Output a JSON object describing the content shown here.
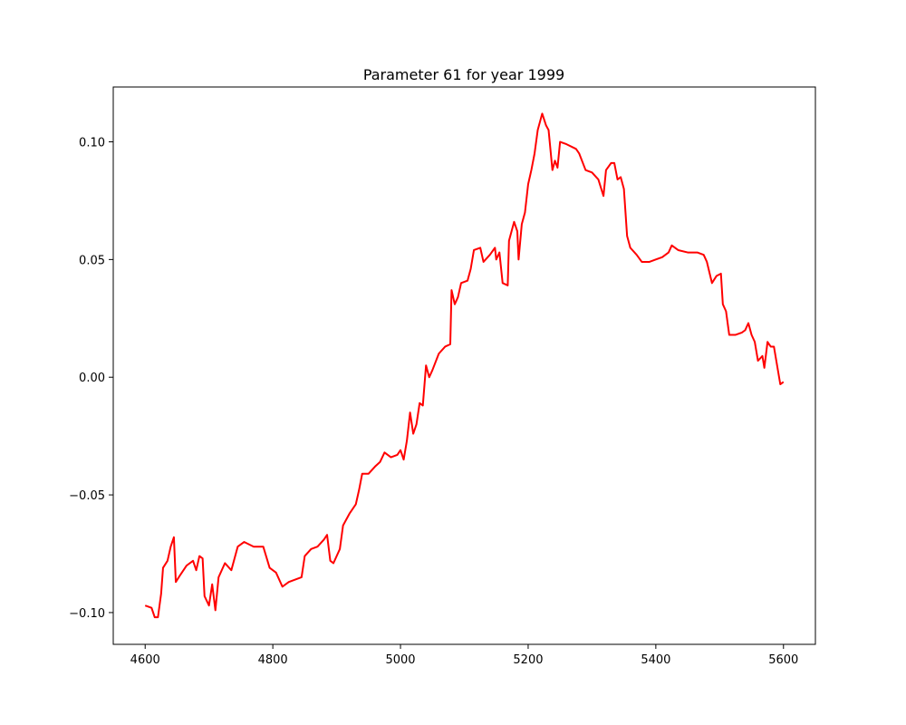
{
  "chart_data": {
    "type": "line",
    "title": "Parameter 61 for year 1999",
    "x": [
      4600,
      4610,
      4615,
      4620,
      4625,
      4628,
      4635,
      4640,
      4645,
      4648,
      4655,
      4665,
      4675,
      4680,
      4685,
      4690,
      4693,
      4700,
      4705,
      4710,
      4715,
      4725,
      4735,
      4745,
      4755,
      4770,
      4785,
      4795,
      4805,
      4815,
      4825,
      4835,
      4845,
      4850,
      4860,
      4870,
      4880,
      4885,
      4890,
      4895,
      4905,
      4910,
      4920,
      4930,
      4935,
      4940,
      4950,
      4960,
      4968,
      4975,
      4985,
      4995,
      5000,
      5005,
      5010,
      5015,
      5020,
      5025,
      5030,
      5035,
      5040,
      5045,
      5050,
      5060,
      5070,
      5078,
      5080,
      5085,
      5090,
      5095,
      5105,
      5110,
      5115,
      5125,
      5130,
      5140,
      5148,
      5150,
      5155,
      5160,
      5168,
      5170,
      5178,
      5183,
      5185,
      5190,
      5195,
      5200,
      5205,
      5210,
      5215,
      5222,
      5228,
      5232,
      5238,
      5242,
      5246,
      5250,
      5260,
      5275,
      5280,
      5290,
      5300,
      5310,
      5318,
      5322,
      5330,
      5335,
      5340,
      5345,
      5350,
      5355,
      5360,
      5370,
      5378,
      5390,
      5400,
      5410,
      5420,
      5425,
      5435,
      5450,
      5465,
      5475,
      5480,
      5488,
      5495,
      5502,
      5505,
      5510,
      5515,
      5525,
      5535,
      5540,
      5545,
      5550,
      5555,
      5560,
      5567,
      5570,
      5575,
      5580,
      5585,
      5590,
      5595,
      5600
    ],
    "series": [
      {
        "color": "#ff0000",
        "values": [
          -0.097,
          -0.098,
          -0.102,
          -0.102,
          -0.092,
          -0.081,
          -0.078,
          -0.072,
          -0.068,
          -0.087,
          -0.084,
          -0.08,
          -0.078,
          -0.082,
          -0.076,
          -0.077,
          -0.093,
          -0.097,
          -0.088,
          -0.099,
          -0.085,
          -0.079,
          -0.082,
          -0.072,
          -0.07,
          -0.072,
          -0.072,
          -0.081,
          -0.083,
          -0.089,
          -0.087,
          -0.086,
          -0.085,
          -0.076,
          -0.073,
          -0.072,
          -0.069,
          -0.067,
          -0.078,
          -0.079,
          -0.073,
          -0.063,
          -0.058,
          -0.054,
          -0.048,
          -0.041,
          -0.041,
          -0.038,
          -0.036,
          -0.032,
          -0.034,
          -0.033,
          -0.031,
          -0.035,
          -0.027,
          -0.015,
          -0.024,
          -0.02,
          -0.011,
          -0.012,
          0.005,
          0.0,
          0.003,
          0.01,
          0.013,
          0.014,
          0.037,
          0.031,
          0.034,
          0.04,
          0.041,
          0.046,
          0.054,
          0.055,
          0.049,
          0.052,
          0.055,
          0.05,
          0.053,
          0.04,
          0.039,
          0.058,
          0.066,
          0.062,
          0.05,
          0.065,
          0.07,
          0.082,
          0.088,
          0.095,
          0.105,
          0.112,
          0.107,
          0.105,
          0.088,
          0.092,
          0.089,
          0.1,
          0.099,
          0.097,
          0.095,
          0.088,
          0.087,
          0.084,
          0.077,
          0.088,
          0.091,
          0.091,
          0.084,
          0.085,
          0.08,
          0.06,
          0.055,
          0.052,
          0.049,
          0.049,
          0.05,
          0.051,
          0.053,
          0.056,
          0.054,
          0.053,
          0.053,
          0.052,
          0.049,
          0.04,
          0.043,
          0.044,
          0.031,
          0.028,
          0.018,
          0.018,
          0.019,
          0.02,
          0.023,
          0.018,
          0.015,
          0.007,
          0.009,
          0.004,
          0.015,
          0.013,
          0.013,
          0.005,
          -0.003,
          -0.002
        ]
      }
    ],
    "xlim": [
      4550,
      5650
    ],
    "xticks": [
      4600,
      4800,
      5000,
      5200,
      5400,
      5600
    ],
    "ylim": [
      -0.1135,
      0.1233
    ],
    "yticks": [
      {
        "value": -0.1,
        "label": "−0.10"
      },
      {
        "value": -0.05,
        "label": "−0.05"
      },
      {
        "value": 0,
        "label": "0.00"
      },
      {
        "value": 0.05,
        "label": "0.05"
      },
      {
        "value": 0.1,
        "label": "0.10"
      }
    ]
  }
}
